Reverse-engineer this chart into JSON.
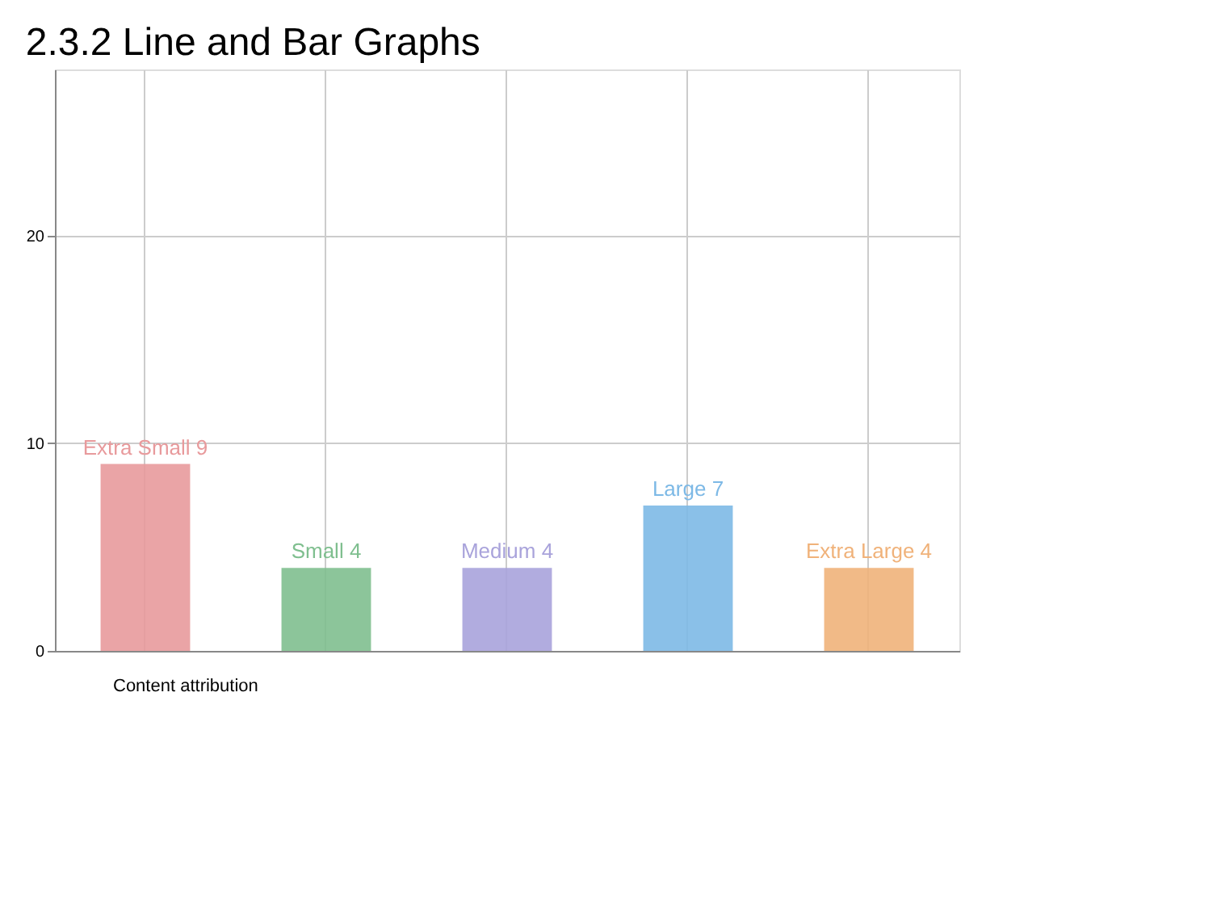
{
  "chart_data": {
    "type": "bar",
    "title": "2.3.2 Line and Bar Graphs",
    "categories": [
      null,
      null,
      null,
      null,
      null
    ],
    "values": [
      9,
      4,
      4,
      7,
      4
    ],
    "colors": [
      "#e89a9c",
      "#7fbf8f",
      "#a9a3db",
      "#7db9e6",
      "#f0b27a"
    ],
    "value_labels": [
      "Extra Small 9",
      "Small 4",
      "Medium 4",
      "Large 7",
      "Extra Large 4"
    ],
    "ylim": [
      0,
      28
    ],
    "yticks": [
      0,
      10,
      20
    ],
    "grid": true,
    "tick_labels": "y",
    "annotations": [
      "Content attribution"
    ]
  }
}
